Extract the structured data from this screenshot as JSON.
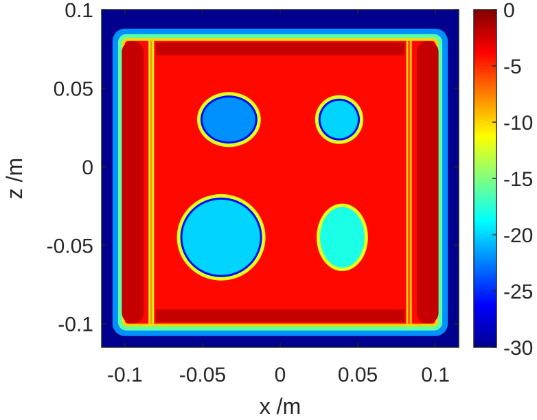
{
  "chart_data": {
    "type": "heatmap",
    "title": "",
    "xlabel": "x /m",
    "ylabel": "z /m",
    "xlim": [
      -0.115,
      0.115
    ],
    "ylim": [
      -0.115,
      0.1
    ],
    "x_ticks": [
      {
        "value": -0.1,
        "label": "-0.1"
      },
      {
        "value": -0.05,
        "label": "-0.05"
      },
      {
        "value": 0,
        "label": "0"
      },
      {
        "value": 0.05,
        "label": "0.05"
      },
      {
        "value": 0.1,
        "label": "0.1"
      }
    ],
    "y_ticks": [
      {
        "value": 0.1,
        "label": "0.1"
      },
      {
        "value": 0.05,
        "label": "0.05"
      },
      {
        "value": 0,
        "label": "0"
      },
      {
        "value": -0.05,
        "label": "-0.05"
      },
      {
        "value": -0.1,
        "label": "-0.1"
      }
    ],
    "colorbar": {
      "colormap": "jet",
      "range": [
        -30,
        0
      ],
      "ticks": [
        {
          "value": 0,
          "label": "0"
        },
        {
          "value": -5,
          "label": "-5"
        },
        {
          "value": -10,
          "label": "-10"
        },
        {
          "value": -15,
          "label": "-15"
        },
        {
          "value": -20,
          "label": "-20"
        },
        {
          "value": -25,
          "label": "-25"
        },
        {
          "value": -30,
          "label": "-30"
        }
      ]
    },
    "background_level": -30,
    "fill_level": -4,
    "features": [
      {
        "kind": "frame",
        "x": [
          -0.1,
          0.1
        ],
        "z": [
          -0.1,
          0.08
        ],
        "level": -4
      },
      {
        "kind": "vertical-bar",
        "x": -0.095,
        "z": [
          -0.1,
          0.08
        ],
        "level": -2
      },
      {
        "kind": "vertical-bar",
        "x": 0.095,
        "z": [
          -0.1,
          0.08
        ],
        "level": -2
      },
      {
        "kind": "gap-line",
        "x": 0.083,
        "z": [
          -0.1,
          0.08
        ],
        "level": -10
      },
      {
        "kind": "gap-line",
        "x": -0.083,
        "z": [
          -0.1,
          0.08
        ],
        "level": -12
      },
      {
        "kind": "horizontal-band",
        "z": 0.075,
        "x": [
          -0.08,
          0.08
        ],
        "level": -2
      },
      {
        "kind": "horizontal-band",
        "z": -0.095,
        "x": [
          -0.08,
          0.08
        ],
        "level": -2
      },
      {
        "kind": "hole",
        "x": -0.033,
        "z": 0.03,
        "rx": 0.017,
        "rz": 0.014,
        "edge_level": -26,
        "center_level": -22
      },
      {
        "kind": "hole",
        "x": 0.038,
        "z": 0.03,
        "rx": 0.012,
        "rz": 0.012,
        "edge_level": -26,
        "center_level": -20
      },
      {
        "kind": "hole",
        "x": -0.038,
        "z": -0.045,
        "rx": 0.025,
        "rz": 0.024,
        "edge_level": -26,
        "center_level": -20
      },
      {
        "kind": "hole",
        "x": 0.04,
        "z": -0.045,
        "rx": 0.013,
        "rz": 0.018,
        "edge_level": -18,
        "center_level": -18
      }
    ]
  }
}
